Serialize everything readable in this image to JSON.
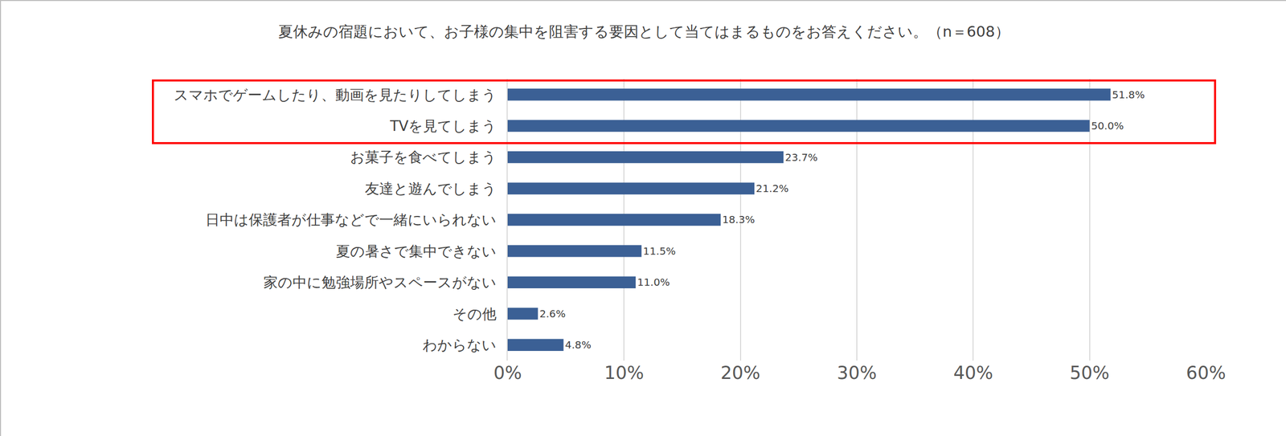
{
  "chart_data": {
    "type": "bar",
    "orientation": "horizontal",
    "title": "夏休みの宿題において、お子様の集中を阻害する要因として当てはまるものをお答えください。（n＝608）",
    "categories": [
      "スマホでゲームしたり、動画を見たりしてしまう",
      "TVを見てしまう",
      "お菓子を食べてしまう",
      "友達と遊んでしまう",
      "日中は保護者が仕事などで一緒にいられない",
      "夏の暑さで集中できない",
      "家の中に勉強場所やスペースがない",
      "その他",
      "わからない"
    ],
    "values": [
      51.8,
      50.0,
      23.7,
      21.2,
      18.3,
      11.5,
      11.0,
      2.6,
      4.8
    ],
    "value_labels": [
      "51.8%",
      "50.0%",
      "23.7%",
      "21.2%",
      "18.3%",
      "11.5%",
      "11.0%",
      "2.6%",
      "4.8%"
    ],
    "color": "#3b6095",
    "xlim": [
      0,
      60
    ],
    "xticks": [
      {
        "value": 0,
        "label": "0%"
      },
      {
        "value": 10,
        "label": "10%"
      },
      {
        "value": 20,
        "label": "20%"
      },
      {
        "value": 30,
        "label": "30%"
      },
      {
        "value": 40,
        "label": "40%"
      },
      {
        "value": 50,
        "label": "50%"
      },
      {
        "value": 60,
        "label": "60%"
      }
    ],
    "grid": true,
    "data_labels": true
  }
}
